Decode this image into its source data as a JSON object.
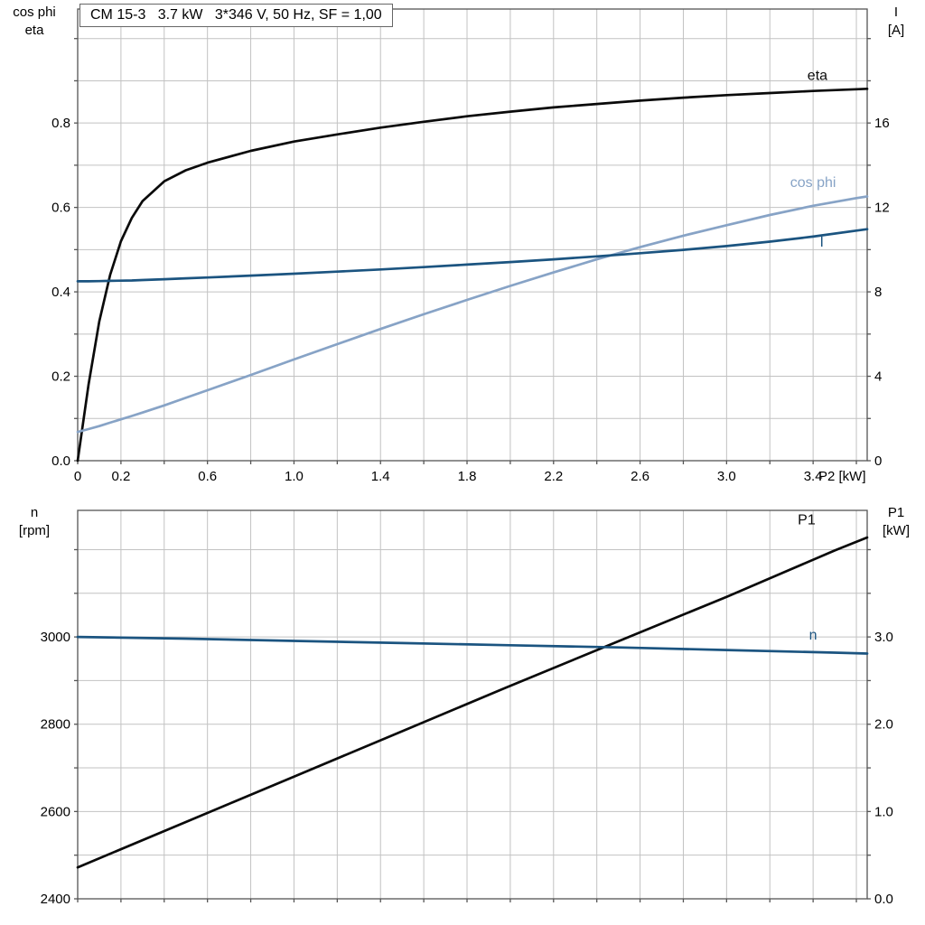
{
  "title": "CM 15-3   3.7 kW   3*346 V, 50 Hz, SF = 1,00",
  "colors": {
    "background": "#ffffff",
    "grid": "#c2c2c2",
    "frame": "#555555",
    "tick": "#555555",
    "text": "#000000",
    "eta_curve": "#0a0a0a",
    "cos_phi_curve": "#87a3c6",
    "current_curve": "#1b5480",
    "p1_curve": "#0a0a0a",
    "n_curve": "#1b5480"
  },
  "chart_data": [
    {
      "id": "top",
      "type": "line",
      "corner": {
        "left": [
          "cos phi",
          "eta"
        ],
        "right": [
          "I",
          "[A]"
        ]
      },
      "x": {
        "min": 0,
        "max": 3.65,
        "title": "P2 [kW]",
        "grid": [
          0.2,
          0.4,
          0.6,
          0.8,
          1,
          1.2,
          1.4,
          1.6,
          1.8,
          2,
          2.2,
          2.4,
          2.6,
          2.8,
          3,
          3.2,
          3.4,
          3.6
        ],
        "ticks": [
          0,
          0.2,
          0.4,
          0.6,
          0.8,
          1,
          1.2,
          1.4,
          1.6,
          1.8,
          2,
          2.2,
          2.4,
          2.6,
          2.8,
          3,
          3.2,
          3.4,
          3.6
        ],
        "labels": [
          [
            "0",
            0
          ],
          [
            "0.2",
            0.2
          ],
          [
            "0.6",
            0.6
          ],
          [
            "1.0",
            1
          ],
          [
            "1.4",
            1.4
          ],
          [
            "1.8",
            1.8
          ],
          [
            "2.2",
            2.2
          ],
          [
            "2.6",
            2.6
          ],
          [
            "3.0",
            3
          ],
          [
            "3.4",
            3.4
          ]
        ]
      },
      "left": {
        "min": 0,
        "max": 1.07,
        "grid": [
          0.1,
          0.2,
          0.3,
          0.4,
          0.5,
          0.6,
          0.7,
          0.8,
          0.9,
          1
        ],
        "ticks": [
          0,
          0.1,
          0.2,
          0.3,
          0.4,
          0.5,
          0.6,
          0.7,
          0.8,
          0.9,
          1
        ],
        "labels": [
          [
            "0.0",
            0
          ],
          [
            "0.2",
            0.2
          ],
          [
            "0.4",
            0.4
          ],
          [
            "0.6",
            0.6
          ],
          [
            "0.8",
            0.8
          ]
        ]
      },
      "right": {
        "min": 0,
        "max": 21.4,
        "ticks": [
          0,
          2,
          4,
          6,
          8,
          10,
          12,
          14,
          16,
          18,
          20
        ],
        "labels": [
          [
            "0",
            0
          ],
          [
            "4",
            4
          ],
          [
            "8",
            8
          ],
          [
            "12",
            12
          ],
          [
            "16",
            16
          ]
        ]
      },
      "series": [
        {
          "name": "eta",
          "axis": "left",
          "color": "#0a0a0a",
          "label": {
            "text": "eta",
            "x": 3.42,
            "y": 0.902
          },
          "x": [
            0,
            0.05,
            0.1,
            0.15,
            0.2,
            0.25,
            0.3,
            0.4,
            0.5,
            0.6,
            0.8,
            1.0,
            1.2,
            1.4,
            1.6,
            1.8,
            2.0,
            2.2,
            2.4,
            2.6,
            2.8,
            3.0,
            3.2,
            3.4,
            3.6,
            3.65
          ],
          "y": [
            0,
            0.18,
            0.33,
            0.44,
            0.52,
            0.575,
            0.615,
            0.662,
            0.688,
            0.706,
            0.734,
            0.756,
            0.773,
            0.789,
            0.803,
            0.816,
            0.827,
            0.837,
            0.845,
            0.853,
            0.86,
            0.866,
            0.871,
            0.876,
            0.88,
            0.881
          ]
        },
        {
          "name": "cos phi",
          "axis": "left",
          "color": "#87a3c6",
          "label": {
            "text": "cos phi",
            "x": 3.4,
            "y": 0.648
          },
          "x": [
            0,
            0.05,
            0.1,
            0.15,
            0.2,
            0.25,
            0.3,
            0.4,
            0.5,
            0.6,
            0.8,
            1.0,
            1.2,
            1.4,
            1.6,
            1.8,
            2.0,
            2.2,
            2.4,
            2.6,
            2.8,
            3.0,
            3.2,
            3.4,
            3.6,
            3.65
          ],
          "y": [
            0.068,
            0.075,
            0.082,
            0.09,
            0.098,
            0.106,
            0.114,
            0.131,
            0.149,
            0.167,
            0.203,
            0.24,
            0.276,
            0.312,
            0.347,
            0.381,
            0.414,
            0.446,
            0.477,
            0.506,
            0.533,
            0.558,
            0.582,
            0.604,
            0.622,
            0.626
          ]
        },
        {
          "name": "I",
          "axis": "right",
          "color": "#1b5480",
          "label": {
            "text": "I",
            "x": 3.44,
            "y": 10.15
          },
          "x": [
            0,
            0.05,
            0.1,
            0.15,
            0.2,
            0.25,
            0.3,
            0.4,
            0.5,
            0.6,
            0.8,
            1.0,
            1.2,
            1.4,
            1.6,
            1.8,
            2.0,
            2.2,
            2.4,
            2.6,
            2.8,
            3.0,
            3.2,
            3.4,
            3.6,
            3.65
          ],
          "y": [
            8.5,
            8.5,
            8.51,
            8.52,
            8.53,
            8.54,
            8.56,
            8.6,
            8.64,
            8.68,
            8.77,
            8.86,
            8.96,
            9.06,
            9.17,
            9.29,
            9.41,
            9.54,
            9.68,
            9.83,
            9.99,
            10.17,
            10.38,
            10.62,
            10.9,
            10.97
          ]
        }
      ]
    },
    {
      "id": "bottom",
      "type": "line",
      "corner": {
        "left": [
          "n",
          "[rpm]"
        ],
        "right": [
          "P1",
          "[kW]"
        ]
      },
      "x": {
        "min": 0,
        "max": 3.65,
        "title": "",
        "grid": [
          0.2,
          0.4,
          0.6,
          0.8,
          1,
          1.2,
          1.4,
          1.6,
          1.8,
          2,
          2.2,
          2.4,
          2.6,
          2.8,
          3,
          3.2,
          3.4,
          3.6
        ],
        "ticks": [
          0,
          0.2,
          0.4,
          0.6,
          0.8,
          1,
          1.2,
          1.4,
          1.6,
          1.8,
          2,
          2.2,
          2.4,
          2.6,
          2.8,
          3,
          3.2,
          3.4,
          3.6
        ],
        "labels": []
      },
      "left": {
        "min": 2400,
        "max": 3290,
        "grid": [
          2500,
          2600,
          2700,
          2800,
          2900,
          3000,
          3100,
          3200
        ],
        "ticks": [
          2400,
          2500,
          2600,
          2700,
          2800,
          2900,
          3000,
          3100,
          3200
        ],
        "labels": [
          [
            "2400",
            2400
          ],
          [
            "2600",
            2600
          ],
          [
            "2800",
            2800
          ],
          [
            "3000",
            3000
          ]
        ]
      },
      "right": {
        "min": 0,
        "max": 4.45,
        "ticks": [
          0,
          0.5,
          1,
          1.5,
          2,
          2.5,
          3,
          3.5,
          4
        ],
        "labels": [
          [
            "0.0",
            0
          ],
          [
            "1.0",
            1
          ],
          [
            "2.0",
            2
          ],
          [
            "3.0",
            3
          ]
        ]
      },
      "series": [
        {
          "name": "P1",
          "axis": "right",
          "color": "#0a0a0a",
          "label": {
            "text": "P1",
            "x": 3.37,
            "y": 4.29
          },
          "x": [
            0,
            0.5,
            1.0,
            1.5,
            2.0,
            2.5,
            3.0,
            3.5,
            3.65
          ],
          "y": [
            0.36,
            0.88,
            1.4,
            1.92,
            2.44,
            2.95,
            3.46,
            3.99,
            4.14
          ]
        },
        {
          "name": "n",
          "axis": "left",
          "color": "#1b5480",
          "label": {
            "text": "n",
            "x": 3.4,
            "y": 2994
          },
          "x": [
            0,
            0.5,
            1.0,
            1.5,
            2.0,
            2.5,
            3.0,
            3.5,
            3.65
          ],
          "y": [
            3000,
            2996,
            2991,
            2986,
            2981,
            2976,
            2970,
            2964,
            2962
          ]
        }
      ]
    }
  ]
}
